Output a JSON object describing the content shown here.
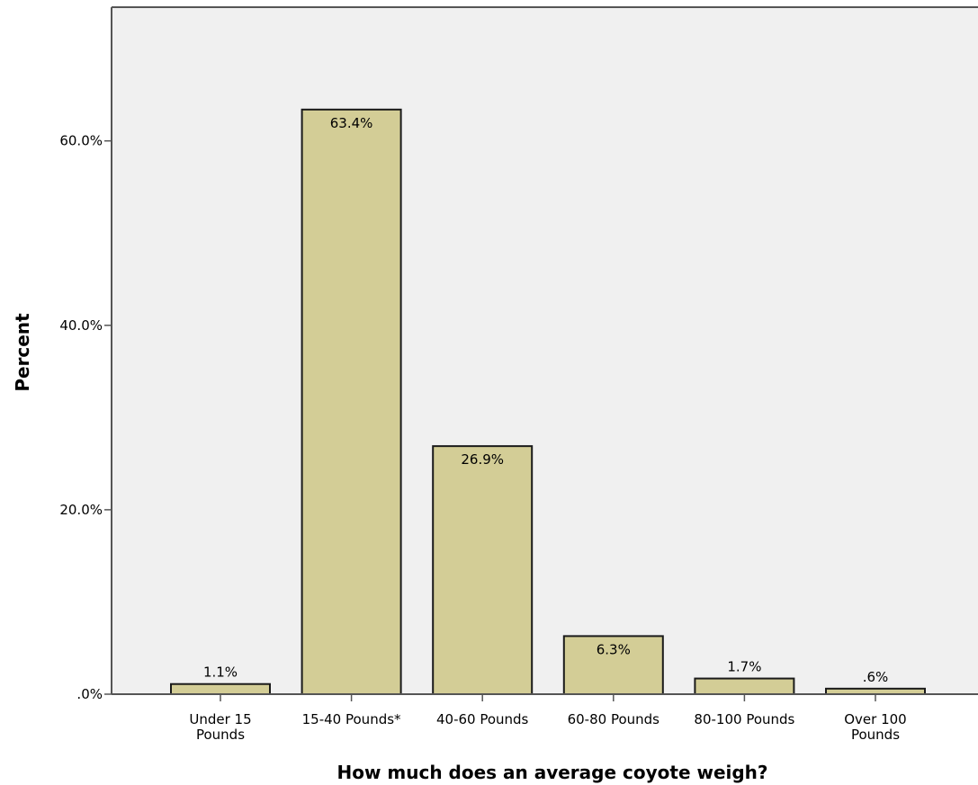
{
  "chart_data": {
    "type": "bar",
    "title": "",
    "xlabel": "How much does an average coyote weigh?",
    "ylabel": "Percent",
    "categories": [
      [
        "Under 15",
        "Pounds"
      ],
      [
        "15-40 Pounds*"
      ],
      [
        "40-60 Pounds"
      ],
      [
        "60-80 Pounds"
      ],
      [
        "80-100 Pounds"
      ],
      [
        "Over 100",
        "Pounds"
      ]
    ],
    "values": [
      1.1,
      63.4,
      26.9,
      6.3,
      1.7,
      0.6
    ],
    "value_labels": [
      "1.1%",
      "63.4%",
      "26.9%",
      "6.3%",
      "1.7%",
      ".6%"
    ],
    "yticks": [
      0,
      20,
      40,
      60
    ],
    "ytick_labels": [
      ".0%",
      "20.0%",
      "40.0%",
      "60.0%"
    ],
    "ylim": [
      0,
      74.5
    ],
    "grid": false,
    "colors": {
      "bar_fill": "#d3cd96",
      "bar_stroke": "#1a1a1a",
      "plot_bg": "#f0f0f0",
      "axis": "#555555"
    }
  }
}
